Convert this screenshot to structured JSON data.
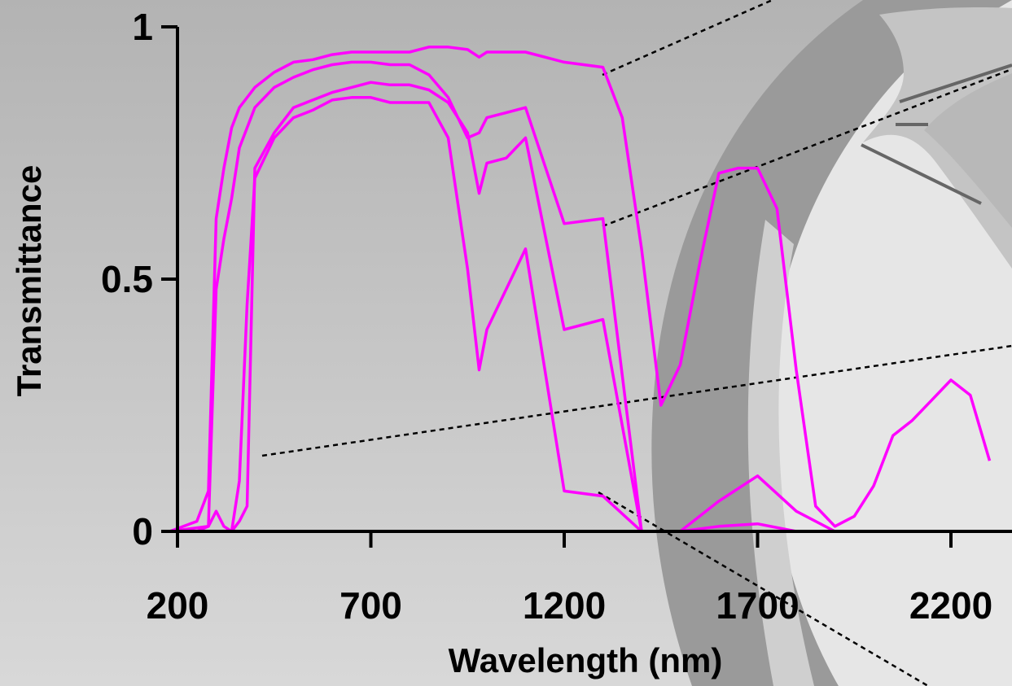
{
  "chart_data": {
    "type": "line",
    "title": "",
    "xlabel": "Wavelength (nm)",
    "ylabel": "Transmittance",
    "xlim": [
      200,
      2300
    ],
    "ylim": [
      0,
      1
    ],
    "x_ticks": [
      200,
      700,
      1200,
      1700,
      2200
    ],
    "x_tick_labels": [
      "200",
      "700",
      "1200",
      "1700",
      "2200"
    ],
    "y_ticks": [
      0,
      0.5,
      1
    ],
    "y_tick_labels": [
      "0",
      "0.5",
      "1"
    ],
    "grid": false,
    "legend": "none",
    "line_color": "#ff00ff",
    "series": [
      {
        "x": [
          180,
          250,
          280,
          300,
          320,
          340,
          360,
          380,
          400,
          450,
          500,
          550,
          600,
          650,
          700,
          750,
          800,
          850,
          900,
          950,
          980,
          1000,
          1050,
          1100,
          1150,
          1200,
          1300,
          1350,
          1400,
          1450,
          1500,
          1550,
          1600,
          1650,
          1700,
          1750,
          1800,
          1850,
          1900,
          1950,
          2000,
          2050,
          2100,
          2150,
          2200,
          2250,
          2300
        ],
        "values": [
          0,
          0.02,
          0.08,
          0.62,
          0.72,
          0.8,
          0.84,
          0.86,
          0.88,
          0.91,
          0.93,
          0.935,
          0.945,
          0.95,
          0.95,
          0.95,
          0.95,
          0.96,
          0.96,
          0.955,
          0.94,
          0.95,
          0.95,
          0.95,
          0.94,
          0.93,
          0.92,
          0.82,
          0.56,
          0.25,
          0.33,
          0.53,
          0.71,
          0.72,
          0.72,
          0.64,
          0.32,
          0.05,
          0.01,
          0.03,
          0.09,
          0.19,
          0.22,
          0.26,
          0.3,
          0.27,
          0.14
        ]
      },
      {
        "x": [
          180,
          280,
          300,
          320,
          340,
          360,
          380,
          400,
          450,
          500,
          550,
          600,
          650,
          700,
          750,
          800,
          850,
          900,
          950,
          980,
          1000,
          1050,
          1100,
          1200,
          1300,
          1400,
          1450,
          1500,
          1600,
          1700,
          1800,
          1900,
          2000,
          2300
        ],
        "values": [
          0,
          0.01,
          0.48,
          0.58,
          0.66,
          0.76,
          0.8,
          0.84,
          0.88,
          0.9,
          0.915,
          0.925,
          0.93,
          0.93,
          0.925,
          0.925,
          0.905,
          0.86,
          0.78,
          0.79,
          0.82,
          0.83,
          0.84,
          0.61,
          0.62,
          0.0,
          0.0,
          0.0,
          0.06,
          0.11,
          0.04,
          0.0,
          0.0,
          0.0
        ]
      },
      {
        "x": [
          180,
          250,
          280,
          300,
          320,
          340,
          360,
          380,
          400,
          450,
          500,
          550,
          600,
          650,
          700,
          750,
          800,
          850,
          900,
          950,
          980,
          1000,
          1050,
          1100,
          1200,
          1300,
          1400,
          1500,
          1600,
          1700,
          1800,
          2300
        ],
        "values": [
          0,
          0.0,
          0.01,
          0.04,
          0.01,
          0.0,
          0.02,
          0.05,
          0.72,
          0.79,
          0.84,
          0.855,
          0.87,
          0.88,
          0.89,
          0.885,
          0.885,
          0.875,
          0.85,
          0.79,
          0.67,
          0.73,
          0.74,
          0.78,
          0.4,
          0.42,
          0.0,
          0.0,
          0.01,
          0.015,
          0.0,
          0.0
        ]
      },
      {
        "x": [
          180,
          300,
          320,
          340,
          360,
          380,
          400,
          450,
          500,
          550,
          600,
          650,
          700,
          750,
          800,
          850,
          900,
          950,
          980,
          1000,
          1100,
          1200,
          1300,
          1400,
          1500,
          2300
        ],
        "values": [
          0,
          0.0,
          0.0,
          0.0,
          0.1,
          0.45,
          0.7,
          0.78,
          0.82,
          0.835,
          0.855,
          0.86,
          0.86,
          0.85,
          0.85,
          0.85,
          0.78,
          0.52,
          0.32,
          0.4,
          0.56,
          0.08,
          0.07,
          0.0,
          0.0,
          0.0
        ]
      }
    ]
  }
}
